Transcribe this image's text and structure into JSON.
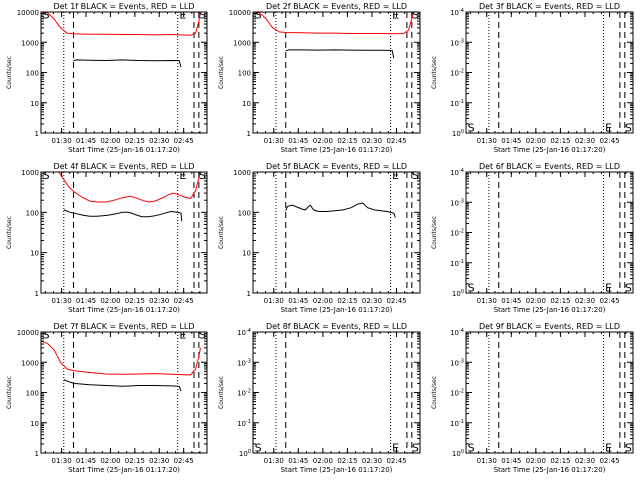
{
  "page": {
    "background": "#ffffff"
  },
  "colors": {
    "events": "#000000",
    "lld": "#ff0000",
    "axes": "#000000"
  },
  "common": {
    "ylabel": "Counts/sec",
    "xlabel": "Start Time (25-Jan-16 01:17:20)",
    "xticks": [
      "01:30",
      "01:45",
      "02:00",
      "02:15",
      "02:30",
      "02:45"
    ]
  },
  "chart_data": [
    {
      "type": "line",
      "title": "Det 1f BLACK = Events, RED = LLD",
      "x_unit": "minutes_after_01:17:20",
      "xlim": [
        0,
        102
      ],
      "yscale": "log",
      "yticks": [
        "1",
        "10",
        "100",
        "1000",
        "10000"
      ],
      "ylim": [
        1,
        10000
      ],
      "markers": {
        "dotted": [
          14,
          84
        ],
        "dashed": [
          20,
          94,
          97
        ]
      },
      "labels": [
        {
          "text": "S",
          "x": 1,
          "y": 9000
        },
        {
          "text": "E",
          "x": 85,
          "y": 9000
        },
        {
          "text": "S",
          "x": 97,
          "y": 9000
        }
      ],
      "series": [
        {
          "color": "lld",
          "points": [
            [
              0,
              10000
            ],
            [
              4,
              9500
            ],
            [
              8,
              6000
            ],
            [
              12,
              3000
            ],
            [
              16,
              2000
            ],
            [
              20,
              1900
            ],
            [
              30,
              1850
            ],
            [
              40,
              1850
            ],
            [
              50,
              1800
            ],
            [
              60,
              1800
            ],
            [
              70,
              1750
            ],
            [
              80,
              1800
            ],
            [
              86,
              1750
            ],
            [
              92,
              1700
            ],
            [
              95,
              2000
            ],
            [
              97,
              5000
            ],
            [
              98,
              10000
            ]
          ]
        },
        {
          "color": "events",
          "points": [
            [
              20,
              250
            ],
            [
              22,
              260
            ],
            [
              30,
              255
            ],
            [
              40,
              250
            ],
            [
              50,
              260
            ],
            [
              60,
              250
            ],
            [
              70,
              245
            ],
            [
              80,
              250
            ],
            [
              85,
              245
            ],
            [
              86,
              150
            ]
          ]
        }
      ]
    },
    {
      "type": "line",
      "title": "Det 2f BLACK = Events, RED = LLD",
      "x_unit": "minutes_after_01:17:20",
      "xlim": [
        0,
        102
      ],
      "yscale": "log",
      "yticks": [
        "1",
        "10",
        "100",
        "1000",
        "10000"
      ],
      "ylim": [
        1,
        10000
      ],
      "markers": {
        "dotted": [
          14,
          84
        ],
        "dashed": [
          20,
          94,
          97
        ]
      },
      "labels": [
        {
          "text": "S",
          "x": 1,
          "y": 9000
        },
        {
          "text": "E",
          "x": 85,
          "y": 9000
        },
        {
          "text": "S",
          "x": 97,
          "y": 9000
        }
      ],
      "series": [
        {
          "color": "lld",
          "points": [
            [
              0,
              10000
            ],
            [
              4,
              9500
            ],
            [
              8,
              6000
            ],
            [
              12,
              3000
            ],
            [
              16,
              2200
            ],
            [
              20,
              2100
            ],
            [
              30,
              2050
            ],
            [
              40,
              2000
            ],
            [
              50,
              2000
            ],
            [
              60,
              1950
            ],
            [
              70,
              1950
            ],
            [
              80,
              1950
            ],
            [
              86,
              1900
            ],
            [
              92,
              1950
            ],
            [
              95,
              2500
            ],
            [
              97,
              6000
            ],
            [
              98,
              10000
            ]
          ]
        },
        {
          "color": "events",
          "points": [
            [
              20,
              520
            ],
            [
              22,
              560
            ],
            [
              30,
              560
            ],
            [
              40,
              550
            ],
            [
              50,
              560
            ],
            [
              60,
              550
            ],
            [
              70,
              540
            ],
            [
              80,
              540
            ],
            [
              85,
              530
            ],
            [
              86,
              300
            ]
          ]
        }
      ]
    },
    {
      "type": "line",
      "title": "Det 3f BLACK = Events, RED = LLD",
      "x_unit": "minutes_after_01:17:20",
      "xlim": [
        0,
        102
      ],
      "yscale": "log",
      "yticks": [
        "10^0",
        "10^-1",
        "10^-2",
        "10^-3",
        "10^-4"
      ],
      "ylim": [
        1,
        0.0001
      ],
      "markers": {
        "dotted": [
          14,
          84
        ],
        "dashed": [
          20,
          94,
          97
        ]
      },
      "labels": [
        {
          "text": "S",
          "x": 1,
          "y": 0.6
        },
        {
          "text": "E",
          "x": 85,
          "y": 0.6
        },
        {
          "text": "S",
          "x": 97,
          "y": 0.6
        }
      ],
      "series": []
    },
    {
      "type": "line",
      "title": "Det 4f BLACK = Events, RED = LLD",
      "x_unit": "minutes_after_01:17:20",
      "xlim": [
        0,
        102
      ],
      "yscale": "log",
      "yticks": [
        "1",
        "10",
        "100",
        "1000"
      ],
      "ylim": [
        1,
        1000
      ],
      "markers": {
        "dotted": [
          14,
          84
        ],
        "dashed": [
          20,
          94,
          97
        ]
      },
      "labels": [
        {
          "text": "S",
          "x": 1,
          "y": 900
        },
        {
          "text": "E",
          "x": 85,
          "y": 900
        },
        {
          "text": "S",
          "x": 97,
          "y": 900
        }
      ],
      "series": [
        {
          "color": "lld",
          "points": [
            [
              11,
              1000
            ],
            [
              14,
              650
            ],
            [
              17,
              430
            ],
            [
              20,
              330
            ],
            [
              25,
              240
            ],
            [
              30,
              190
            ],
            [
              35,
              180
            ],
            [
              40,
              180
            ],
            [
              45,
              200
            ],
            [
              50,
              230
            ],
            [
              55,
              250
            ],
            [
              58,
              230
            ],
            [
              62,
              200
            ],
            [
              66,
              180
            ],
            [
              70,
              190
            ],
            [
              75,
              230
            ],
            [
              78,
              270
            ],
            [
              81,
              300
            ],
            [
              84,
              280
            ],
            [
              88,
              240
            ],
            [
              92,
              220
            ],
            [
              95,
              350
            ],
            [
              97,
              700
            ],
            [
              98,
              1000
            ]
          ]
        },
        {
          "color": "events",
          "points": [
            [
              14,
              115
            ],
            [
              18,
              100
            ],
            [
              22,
              92
            ],
            [
              26,
              85
            ],
            [
              30,
              80
            ],
            [
              34,
              80
            ],
            [
              38,
              82
            ],
            [
              42,
              86
            ],
            [
              46,
              92
            ],
            [
              50,
              100
            ],
            [
              54,
              100
            ],
            [
              58,
              88
            ],
            [
              62,
              78
            ],
            [
              66,
              78
            ],
            [
              70,
              82
            ],
            [
              74,
              90
            ],
            [
              78,
              100
            ],
            [
              80,
              105
            ],
            [
              84,
              100
            ],
            [
              86,
              95
            ],
            [
              86.5,
              60
            ]
          ]
        }
      ]
    },
    {
      "type": "line",
      "title": "Det 5f BLACK = Events, RED = LLD",
      "x_unit": "minutes_after_01:17:20",
      "xlim": [
        0,
        102
      ],
      "yscale": "log",
      "yticks": [
        "1",
        "10",
        "100",
        "1000"
      ],
      "ylim": [
        1,
        1000
      ],
      "markers": {
        "dotted": [
          14,
          84
        ],
        "dashed": [
          20,
          94,
          97
        ]
      },
      "labels": [
        {
          "text": "E",
          "x": 85,
          "y": 900
        },
        {
          "text": "S",
          "x": 97,
          "y": 900
        }
      ],
      "series": [
        {
          "color": "events",
          "points": [
            [
              20,
              110
            ],
            [
              21,
              140
            ],
            [
              24,
              150
            ],
            [
              27,
              135
            ],
            [
              30,
              120
            ],
            [
              32,
              115
            ],
            [
              34,
              140
            ],
            [
              35,
              150
            ],
            [
              37,
              115
            ],
            [
              40,
              105
            ],
            [
              45,
              105
            ],
            [
              50,
              110
            ],
            [
              55,
              115
            ],
            [
              60,
              130
            ],
            [
              64,
              160
            ],
            [
              67,
              170
            ],
            [
              70,
              130
            ],
            [
              74,
              115
            ],
            [
              78,
              110
            ],
            [
              82,
              105
            ],
            [
              86,
              95
            ],
            [
              87,
              75
            ]
          ]
        }
      ]
    },
    {
      "type": "line",
      "title": "Det 6f BLACK = Events, RED = LLD",
      "x_unit": "minutes_after_01:17:20",
      "xlim": [
        0,
        102
      ],
      "yscale": "log",
      "yticks": [
        "10^0",
        "10^-1",
        "10^-2",
        "10^-3",
        "10^-4"
      ],
      "ylim": [
        1,
        0.0001
      ],
      "markers": {
        "dotted": [
          14,
          84
        ],
        "dashed": [
          20,
          94,
          97
        ]
      },
      "labels": [
        {
          "text": "S",
          "x": 1,
          "y": 0.6
        },
        {
          "text": "E",
          "x": 85,
          "y": 0.6
        },
        {
          "text": "S",
          "x": 97,
          "y": 0.6
        }
      ],
      "series": []
    },
    {
      "type": "line",
      "title": "Det 7f BLACK = Events, RED = LLD",
      "x_unit": "minutes_after_01:17:20",
      "xlim": [
        0,
        102
      ],
      "yscale": "log",
      "yticks": [
        "1",
        "10",
        "100",
        "1000",
        "10000"
      ],
      "ylim": [
        1,
        10000
      ],
      "markers": {
        "dotted": [
          14,
          84
        ],
        "dashed": [
          20,
          94,
          97
        ]
      },
      "labels": [
        {
          "text": "S",
          "x": 1,
          "y": 9000
        },
        {
          "text": "E",
          "x": 85,
          "y": 9000
        },
        {
          "text": "S",
          "x": 97,
          "y": 9000
        }
      ],
      "series": [
        {
          "color": "lld",
          "points": [
            [
              0,
              5000
            ],
            [
              4,
              4200
            ],
            [
              8,
              2600
            ],
            [
              12,
              1000
            ],
            [
              16,
              600
            ],
            [
              20,
              530
            ],
            [
              30,
              460
            ],
            [
              40,
              410
            ],
            [
              50,
              400
            ],
            [
              60,
              410
            ],
            [
              70,
              420
            ],
            [
              80,
              400
            ],
            [
              86,
              390
            ],
            [
              92,
              380
            ],
            [
              95,
              600
            ],
            [
              97,
              1600
            ],
            [
              98,
              3000
            ]
          ]
        },
        {
          "color": "events",
          "points": [
            [
              14,
              260
            ],
            [
              20,
              200
            ],
            [
              30,
              180
            ],
            [
              40,
              170
            ],
            [
              50,
              160
            ],
            [
              60,
              170
            ],
            [
              70,
              170
            ],
            [
              80,
              165
            ],
            [
              85,
              160
            ],
            [
              86,
              110
            ]
          ]
        }
      ]
    },
    {
      "type": "line",
      "title": "Det 8f BLACK = Events, RED = LLD",
      "x_unit": "minutes_after_01:17:20",
      "xlim": [
        0,
        102
      ],
      "yscale": "log",
      "yticks": [
        "10^0",
        "10^-1",
        "10^-2",
        "10^-3",
        "10^-4"
      ],
      "ylim": [
        1,
        0.0001
      ],
      "markers": {
        "dotted": [
          14,
          84
        ],
        "dashed": [
          20,
          94,
          97
        ]
      },
      "labels": [
        {
          "text": "S",
          "x": 1,
          "y": 0.6
        },
        {
          "text": "E",
          "x": 85,
          "y": 0.6
        },
        {
          "text": "S",
          "x": 97,
          "y": 0.6
        }
      ],
      "series": []
    },
    {
      "type": "line",
      "title": "Det 9f BLACK = Events, RED = LLD",
      "x_unit": "minutes_after_01:17:20",
      "xlim": [
        0,
        102
      ],
      "yscale": "log",
      "yticks": [
        "10^0",
        "10^-1",
        "10^-2",
        "10^-3",
        "10^-4"
      ],
      "ylim": [
        1,
        0.0001
      ],
      "markers": {
        "dotted": [
          14,
          84
        ],
        "dashed": [
          20,
          94,
          97
        ]
      },
      "labels": [
        {
          "text": "S",
          "x": 1,
          "y": 0.6
        },
        {
          "text": "E",
          "x": 85,
          "y": 0.6
        },
        {
          "text": "S",
          "x": 97,
          "y": 0.6
        }
      ],
      "series": []
    }
  ]
}
